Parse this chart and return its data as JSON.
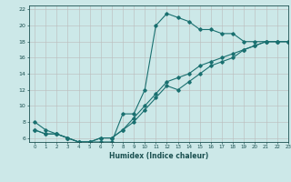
{
  "xlabel": "Humidex (Indice chaleur)",
  "bg_color": "#cce8e8",
  "grid_color": "#bbbbbb",
  "line_color": "#1a7070",
  "xlim": [
    -0.5,
    23
  ],
  "ylim": [
    5.5,
    22.5
  ],
  "xticks": [
    0,
    1,
    2,
    3,
    4,
    5,
    6,
    7,
    8,
    9,
    10,
    11,
    12,
    13,
    14,
    15,
    16,
    17,
    18,
    19,
    20,
    21,
    22,
    23
  ],
  "yticks": [
    6,
    8,
    10,
    12,
    14,
    16,
    18,
    20,
    22
  ],
  "line1_x": [
    0,
    1,
    2,
    3,
    4,
    5,
    6,
    7,
    8,
    9,
    10,
    11,
    12,
    13,
    14,
    15,
    16,
    17,
    18,
    19,
    20,
    21,
    22,
    23
  ],
  "line1_y": [
    8,
    7,
    6.5,
    6,
    5.5,
    5.5,
    5.5,
    5.5,
    9,
    9,
    12,
    20,
    21.5,
    21,
    20.5,
    19.5,
    19.5,
    19,
    19,
    18,
    18,
    18,
    18,
    18
  ],
  "line2_x": [
    0,
    1,
    2,
    3,
    4,
    5,
    6,
    7,
    8,
    9,
    10,
    11,
    12,
    13,
    14,
    15,
    16,
    17,
    18,
    19,
    20,
    21,
    22,
    23
  ],
  "line2_y": [
    7,
    6.5,
    6.5,
    6,
    5.5,
    5.5,
    6,
    6,
    7,
    8.0,
    9.5,
    11,
    12.5,
    12,
    13,
    14,
    15,
    15.5,
    16,
    17,
    17.5,
    18,
    18,
    18
  ],
  "line3_x": [
    0,
    1,
    2,
    3,
    4,
    5,
    6,
    7,
    8,
    9,
    10,
    11,
    12,
    13,
    14,
    15,
    16,
    17,
    18,
    19,
    20,
    21,
    22,
    23
  ],
  "line3_y": [
    7,
    6.5,
    6.5,
    6,
    5.5,
    5.5,
    6,
    6,
    7,
    8.5,
    10,
    11.5,
    13,
    13.5,
    14,
    15,
    15.5,
    16,
    16.5,
    17,
    17.5,
    18,
    18,
    18
  ]
}
